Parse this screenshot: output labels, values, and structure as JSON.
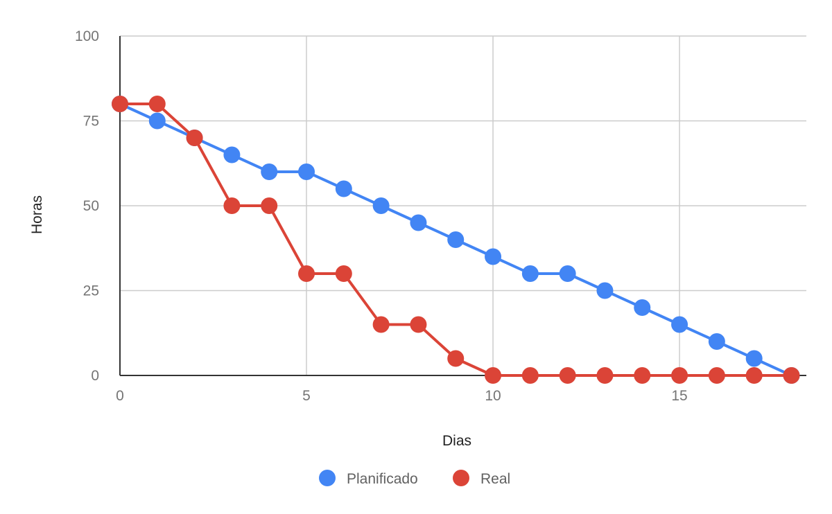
{
  "chart_data": {
    "type": "line",
    "title": "",
    "xlabel": "Dias",
    "ylabel": "Horas",
    "xlim": [
      0,
      18.4
    ],
    "ylim": [
      0,
      100
    ],
    "x_ticks": [
      0,
      5,
      10,
      15
    ],
    "y_ticks": [
      0,
      25,
      50,
      75,
      100
    ],
    "grid": true,
    "legend_position": "bottom",
    "x": [
      0,
      1,
      2,
      3,
      4,
      5,
      6,
      7,
      8,
      9,
      10,
      11,
      12,
      13,
      14,
      15,
      16,
      17,
      18
    ],
    "series": [
      {
        "name": "Planificado",
        "color": "#4285f4",
        "values": [
          80,
          75,
          70,
          65,
          60,
          60,
          55,
          50,
          45,
          40,
          35,
          30,
          30,
          25,
          20,
          15,
          10,
          5,
          0
        ]
      },
      {
        "name": "Real",
        "color": "#db4437",
        "values": [
          80,
          80,
          70,
          50,
          50,
          30,
          30,
          15,
          15,
          5,
          0,
          0,
          0,
          0,
          0,
          0,
          0,
          0,
          0
        ]
      }
    ]
  }
}
